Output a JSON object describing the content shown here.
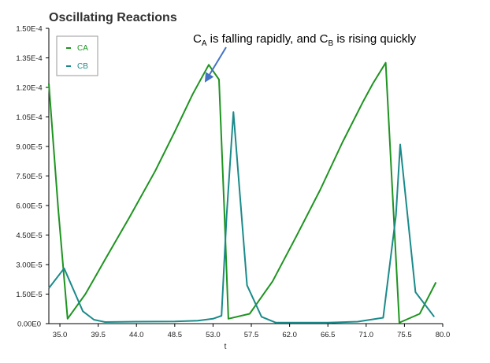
{
  "chart_data": {
    "type": "line",
    "title": "Oscillating Reactions",
    "xlabel": "t",
    "ylabel": "",
    "xlim": [
      33.7,
      80.0
    ],
    "ylim": [
      0,
      0.00015
    ],
    "x_ticks": [
      "35.0",
      "39.5",
      "44.0",
      "48.5",
      "53.0",
      "57.5",
      "62.0",
      "66.5",
      "71.0",
      "75.5",
      "80.0"
    ],
    "x_tick_values": [
      35.0,
      39.5,
      44.0,
      48.5,
      53.0,
      57.5,
      62.0,
      66.5,
      71.0,
      75.5,
      80.0
    ],
    "y_ticks": [
      "0.00E0",
      "1.50E-5",
      "3.00E-5",
      "4.50E-5",
      "6.00E-5",
      "7.50E-5",
      "9.00E-5",
      "1.05E-4",
      "1.20E-4",
      "1.35E-4",
      "1.50E-4"
    ],
    "y_tick_values": [
      0,
      1.5e-05,
      3e-05,
      4.5e-05,
      6e-05,
      7.5e-05,
      9e-05,
      0.000105,
      0.00012,
      0.000135,
      0.00015
    ],
    "grid": false,
    "legend": "top-left",
    "series": [
      {
        "name": "CA",
        "color": "#1e9420",
        "points": [
          [
            33.7,
            0.000122
          ],
          [
            34.8,
            5.83e-05
          ],
          [
            35.9,
            2.5e-06
          ],
          [
            38.0,
            1.5e-05
          ],
          [
            40.3,
            3.25e-05
          ],
          [
            43.2,
            5.42e-05
          ],
          [
            46.2,
            7.75e-05
          ],
          [
            48.5,
            9.75e-05
          ],
          [
            50.6,
            0.0001165
          ],
          [
            52.5,
            0.0001315
          ],
          [
            53.7,
            0.000124
          ],
          [
            54.3,
            6e-05
          ],
          [
            54.8,
            2.5e-06
          ],
          [
            57.3,
            5e-06
          ],
          [
            60.0,
            2.15e-05
          ],
          [
            62.8,
            4.45e-05
          ],
          [
            65.6,
            6.8e-05
          ],
          [
            68.2,
            9.2e-05
          ],
          [
            70.6,
            0.0001125
          ],
          [
            71.8,
            0.000122
          ],
          [
            73.3,
            0.0001325
          ],
          [
            74.3,
            5e-05
          ],
          [
            74.9,
            5e-07
          ],
          [
            77.3,
            5e-06
          ],
          [
            79.2,
            2.1e-05
          ]
        ]
      },
      {
        "name": "CB",
        "color": "#1b8a8a",
        "points": [
          [
            33.7,
            1.8e-05
          ],
          [
            35.5,
            2.81e-05
          ],
          [
            37.7,
            6.3e-06
          ],
          [
            39.0,
            2e-06
          ],
          [
            40.3,
            8e-07
          ],
          [
            44.0,
            1e-06
          ],
          [
            48.5,
            1.1e-06
          ],
          [
            51.2,
            1.5e-06
          ],
          [
            53.0,
            2.5e-06
          ],
          [
            54.0,
            4e-06
          ],
          [
            54.6,
            5.5e-05
          ],
          [
            55.4,
            0.0001075
          ],
          [
            57.0,
            1.95e-05
          ],
          [
            58.7,
            3.5e-06
          ],
          [
            60.4,
            5e-07
          ],
          [
            66.5,
            5e-07
          ],
          [
            70.0,
            1e-06
          ],
          [
            73.0,
            3e-06
          ],
          [
            74.5,
            5.5e-05
          ],
          [
            75.0,
            9.1e-05
          ],
          [
            76.8,
            1.6e-05
          ],
          [
            79.0,
            3.5e-06
          ]
        ]
      }
    ],
    "annotations": [
      {
        "text": "C",
        "sub_a": "A",
        "text_mid": " is falling rapidly, and C",
        "sub_b": "B",
        "text_end": " is rising quickly"
      }
    ]
  }
}
